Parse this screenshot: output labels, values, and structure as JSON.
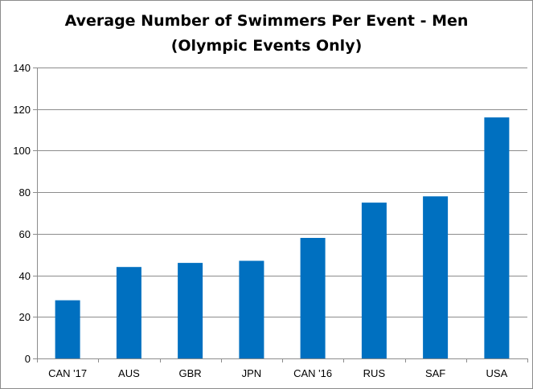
{
  "chart_data": {
    "type": "bar",
    "title_lines": [
      "Average Number of Swimmers Per Event - Men",
      "(Olympic Events Only)"
    ],
    "categories": [
      "CAN '17",
      "AUS",
      "GBR",
      "JPN",
      "CAN '16",
      "RUS",
      "SAF",
      "USA"
    ],
    "values": [
      28,
      44,
      46,
      47,
      58,
      75,
      78,
      116
    ],
    "xlabel": "",
    "ylabel": "",
    "ylim": [
      0,
      140
    ],
    "yticks": [
      "0",
      "20",
      "40",
      "60",
      "80",
      "100",
      "120",
      "140"
    ],
    "grid": true,
    "bar_color": "#0070C0"
  }
}
